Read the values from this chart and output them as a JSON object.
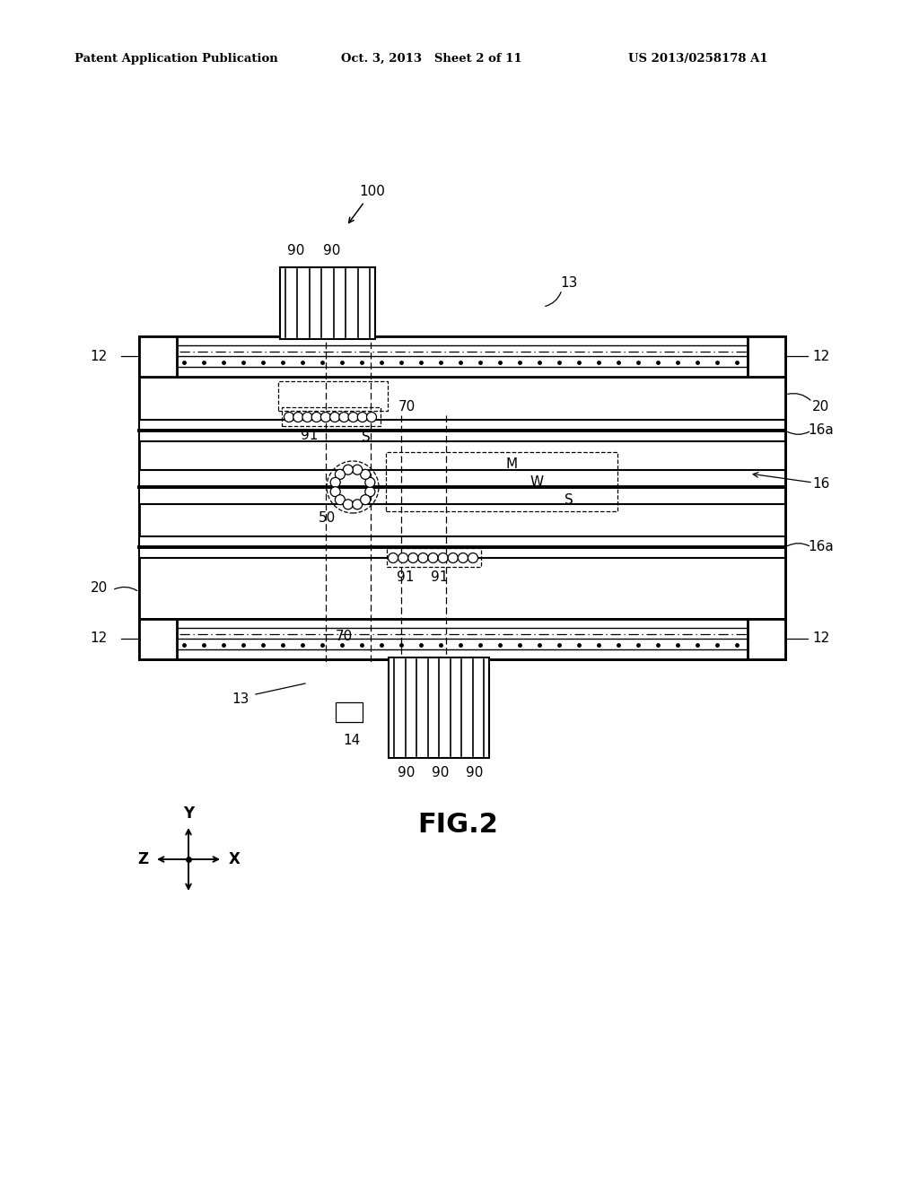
{
  "bg_color": "#ffffff",
  "header_left": "Patent Application Publication",
  "header_mid": "Oct. 3, 2013   Sheet 2 of 11",
  "header_right": "US 2013/0258178 A1",
  "fig_label": "FIG.2"
}
